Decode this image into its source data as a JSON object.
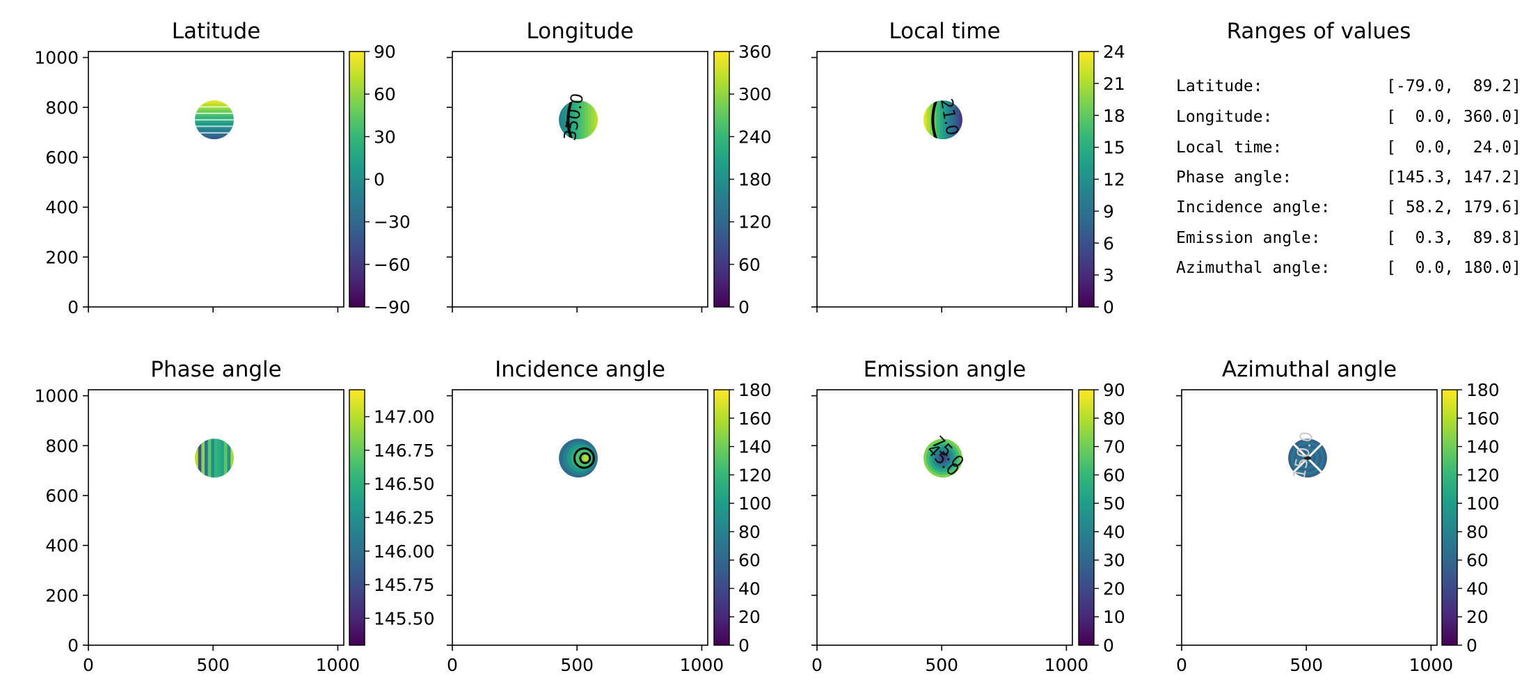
{
  "chart_data": [
    {
      "type": "heatmap",
      "title": "Latitude",
      "xlabel": "",
      "ylabel": "",
      "xlim": [
        0,
        1024
      ],
      "ylim": [
        0,
        1024
      ],
      "yticks": [
        "0",
        "200",
        "400",
        "600",
        "800",
        "1000"
      ],
      "xticks": [],
      "disc": {
        "center_x": 505,
        "center_y": 750,
        "radius": 78
      },
      "colorbar": {
        "min": -90,
        "max": 90,
        "ticks": [
          "90",
          "60",
          "30",
          "0",
          "−30",
          "−60",
          "−90"
        ],
        "tick_values": [
          90,
          60,
          30,
          0,
          -30,
          -60,
          -90
        ]
      },
      "contour_labels": []
    },
    {
      "type": "heatmap",
      "title": "Longitude",
      "xlabel": "",
      "ylabel": "",
      "xlim": [
        0,
        1024
      ],
      "ylim": [
        0,
        1024
      ],
      "yticks": [],
      "xticks": [],
      "disc": {
        "center_x": 505,
        "center_y": 750,
        "radius": 78
      },
      "colorbar": {
        "min": 0,
        "max": 360,
        "ticks": [
          "360",
          "300",
          "240",
          "180",
          "120",
          "60",
          "0"
        ],
        "tick_values": [
          360,
          300,
          240,
          180,
          120,
          60,
          0
        ]
      },
      "contour_labels": [
        "350.0"
      ]
    },
    {
      "type": "heatmap",
      "title": "Local time",
      "xlabel": "",
      "ylabel": "",
      "xlim": [
        0,
        1024
      ],
      "ylim": [
        0,
        1024
      ],
      "yticks": [],
      "xticks": [],
      "disc": {
        "center_x": 505,
        "center_y": 750,
        "radius": 78
      },
      "colorbar": {
        "min": 0,
        "max": 24,
        "ticks": [
          "24",
          "21",
          "18",
          "15",
          "12",
          "9",
          "6",
          "3",
          "0"
        ],
        "tick_values": [
          24,
          21,
          18,
          15,
          12,
          9,
          6,
          3,
          0
        ]
      },
      "contour_labels": [
        "21.0"
      ]
    },
    {
      "type": "heatmap",
      "title": "Phase angle",
      "xlabel": "",
      "ylabel": "",
      "xlim": [
        0,
        1024
      ],
      "ylim": [
        0,
        1024
      ],
      "yticks": [
        "0",
        "200",
        "400",
        "600",
        "800",
        "1000"
      ],
      "xticks": [
        "0",
        "500",
        "1000"
      ],
      "disc": {
        "center_x": 505,
        "center_y": 750,
        "radius": 78
      },
      "colorbar": {
        "min": 145.3,
        "max": 147.2,
        "ticks": [
          "147.00",
          "146.75",
          "146.50",
          "146.25",
          "146.00",
          "145.75",
          "145.50"
        ],
        "tick_values": [
          147.0,
          146.75,
          146.5,
          146.25,
          146.0,
          145.75,
          145.5
        ]
      },
      "contour_labels": []
    },
    {
      "type": "heatmap",
      "title": "Incidence angle",
      "xlabel": "",
      "ylabel": "",
      "xlim": [
        0,
        1024
      ],
      "ylim": [
        0,
        1024
      ],
      "yticks": [],
      "xticks": [
        "0",
        "500",
        "1000"
      ],
      "disc": {
        "center_x": 505,
        "center_y": 750,
        "radius": 78
      },
      "colorbar": {
        "min": 0,
        "max": 180,
        "ticks": [
          "180",
          "160",
          "140",
          "120",
          "100",
          "80",
          "60",
          "40",
          "20",
          "0"
        ],
        "tick_values": [
          180,
          160,
          140,
          120,
          100,
          80,
          60,
          40,
          20,
          0
        ]
      },
      "contour_labels": []
    },
    {
      "type": "heatmap",
      "title": "Emission angle",
      "xlabel": "",
      "ylabel": "",
      "xlim": [
        0,
        1024
      ],
      "ylim": [
        0,
        1024
      ],
      "yticks": [],
      "xticks": [
        "0",
        "500",
        "1000"
      ],
      "disc": {
        "center_x": 505,
        "center_y": 750,
        "radius": 78
      },
      "colorbar": {
        "min": 0,
        "max": 90,
        "ticks": [
          "90",
          "80",
          "70",
          "60",
          "50",
          "40",
          "30",
          "20",
          "10",
          "0"
        ],
        "tick_values": [
          90,
          80,
          70,
          60,
          50,
          40,
          30,
          20,
          10,
          0
        ]
      },
      "contour_labels": [
        "75.0",
        "45.0"
      ]
    },
    {
      "type": "heatmap",
      "title": "Azimuthal angle",
      "xlabel": "",
      "ylabel": "",
      "xlim": [
        0,
        1024
      ],
      "ylim": [
        0,
        1024
      ],
      "yticks": [],
      "xticks": [
        "0",
        "500",
        "1000"
      ],
      "disc": {
        "center_x": 505,
        "center_y": 750,
        "radius": 78
      },
      "colorbar": {
        "min": 0,
        "max": 180,
        "ticks": [
          "180",
          "160",
          "140",
          "120",
          "100",
          "80",
          "60",
          "40",
          "20",
          "0"
        ],
        "tick_values": [
          180,
          160,
          140,
          120,
          100,
          80,
          60,
          40,
          20,
          0
        ]
      },
      "contour_labels": [
        "150.0"
      ]
    }
  ],
  "ranges_panel": {
    "title": "Ranges of values",
    "rows": [
      {
        "label": "Latitude:",
        "value": "[-79.0,  89.2]"
      },
      {
        "label": "Longitude:",
        "value": "[  0.0, 360.0]"
      },
      {
        "label": "Local time:",
        "value": "[  0.0,  24.0]"
      },
      {
        "label": "Phase angle:",
        "value": "[145.3, 147.2]"
      },
      {
        "label": "Incidence angle:",
        "value": "[ 58.2, 179.6]"
      },
      {
        "label": "Emission angle:",
        "value": "[  0.3,  89.8]"
      },
      {
        "label": "Azimuthal angle:",
        "value": "[  0.0, 180.0]"
      }
    ]
  },
  "colors": {
    "viridis": [
      "#440154",
      "#482878",
      "#3e4989",
      "#31688e",
      "#26828e",
      "#1f9e89",
      "#35b779",
      "#6ece58",
      "#b5de2b",
      "#fde725"
    ],
    "axis": "#000000",
    "background": "#ffffff"
  }
}
